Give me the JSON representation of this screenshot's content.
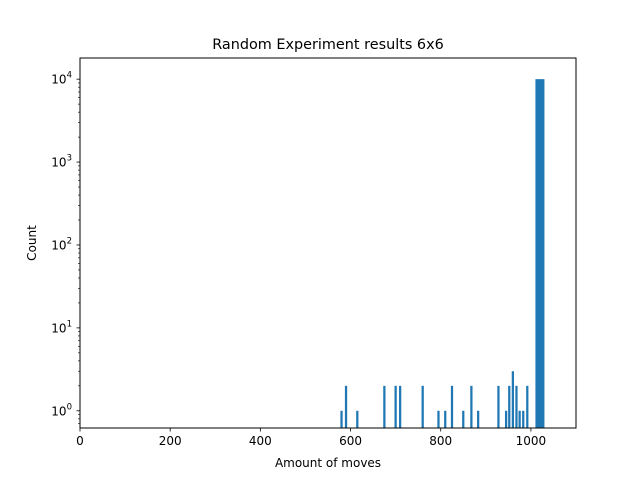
{
  "chart_data": {
    "type": "bar",
    "title": "Random Experiment results 6x6",
    "xlabel": "Amount of moves",
    "ylabel": "Count",
    "xlim": [
      0,
      1100
    ],
    "ylim": [
      0.62,
      18000
    ],
    "yscale": "log",
    "grid": false,
    "bar_color": "#1f77b4",
    "x_ticks": [
      0,
      200,
      400,
      600,
      800,
      1000
    ],
    "y_ticks": [
      {
        "value": 1,
        "base": "10",
        "exp": "0"
      },
      {
        "value": 10,
        "base": "10",
        "exp": "1"
      },
      {
        "value": 100,
        "base": "10",
        "exp": "2"
      },
      {
        "value": 1000,
        "base": "10",
        "exp": "3"
      },
      {
        "value": 10000,
        "base": "10",
        "exp": "4"
      }
    ],
    "bars": [
      {
        "x": 580,
        "count": 1
      },
      {
        "x": 590,
        "count": 2
      },
      {
        "x": 615,
        "count": 1
      },
      {
        "x": 675,
        "count": 2
      },
      {
        "x": 700,
        "count": 2
      },
      {
        "x": 710,
        "count": 2
      },
      {
        "x": 760,
        "count": 2
      },
      {
        "x": 795,
        "count": 1
      },
      {
        "x": 810,
        "count": 1
      },
      {
        "x": 825,
        "count": 2
      },
      {
        "x": 850,
        "count": 1
      },
      {
        "x": 868,
        "count": 2
      },
      {
        "x": 883,
        "count": 1
      },
      {
        "x": 928,
        "count": 2
      },
      {
        "x": 945,
        "count": 1
      },
      {
        "x": 952,
        "count": 2
      },
      {
        "x": 960,
        "count": 3
      },
      {
        "x": 968,
        "count": 2
      },
      {
        "x": 975,
        "count": 1
      },
      {
        "x": 983,
        "count": 1
      },
      {
        "x": 992,
        "count": 2
      },
      {
        "x": 1020,
        "count": 10000
      }
    ],
    "bar_width": 5,
    "wide_bar_width": 20
  }
}
